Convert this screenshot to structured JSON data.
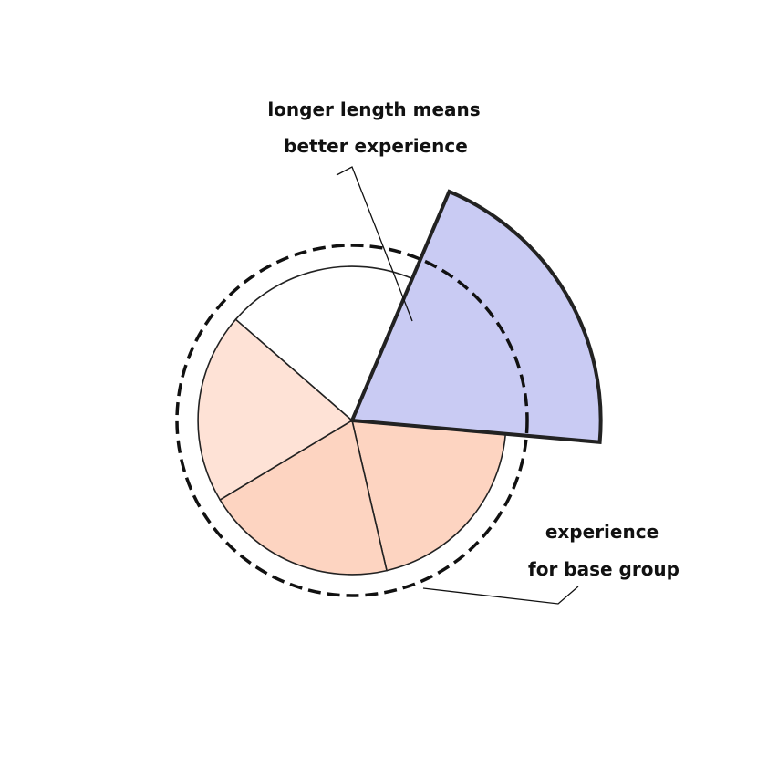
{
  "annotations": {
    "length_note_line1": "longer length means",
    "length_note_line2": "better experience",
    "base_note_line1": "experience",
    "base_note_line2": "for base group"
  },
  "chart_data": {
    "type": "radial-sector",
    "baseline": {
      "relative_radius": 1.0,
      "style": "dashed-circle"
    },
    "sectors": [
      {
        "relative_radius": 1.42,
        "color": "#c9cbf3",
        "highlighted": true
      },
      {
        "relative_radius": 0.88,
        "color": "#fdd4c1",
        "highlighted": false
      },
      {
        "relative_radius": 0.88,
        "color": "#fdd4c1",
        "highlighted": false
      },
      {
        "relative_radius": 0.88,
        "color": "#fee2d6",
        "highlighted": false
      },
      {
        "relative_radius": 0.88,
        "color": "#ffffff",
        "highlighted": false
      }
    ]
  }
}
